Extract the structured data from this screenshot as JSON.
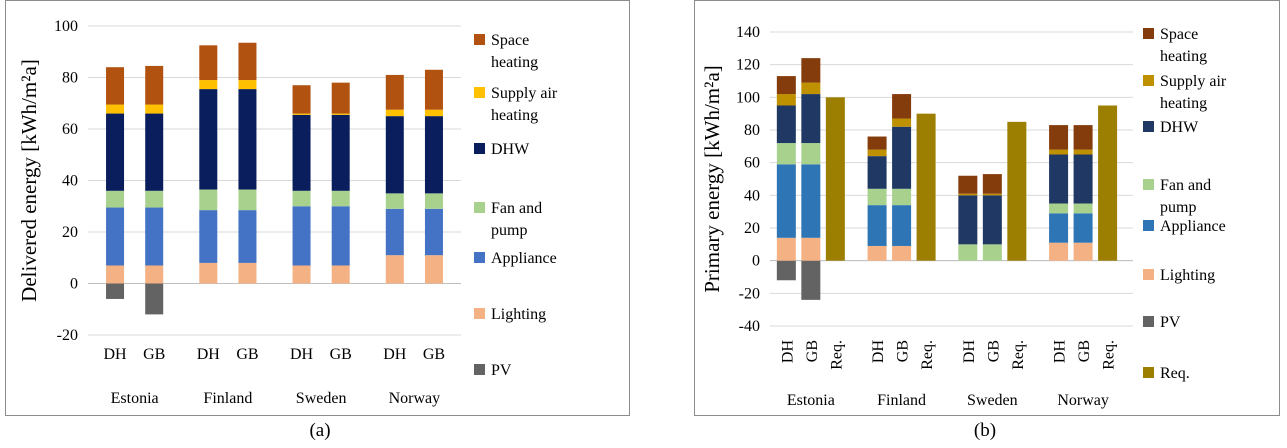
{
  "captions": {
    "a": "(a)",
    "b": "(b)"
  },
  "colors": {
    "PV": "#636363",
    "Lighting": "#f4b183",
    "Appliance": "#4472c4",
    "Fan and pump": "#a9d18e",
    "DHW": "#0a1e5e",
    "Supply air heating": "#ffc000",
    "Space heating": "#b15211",
    "Req.": "#9c7f00"
  },
  "colors_b": {
    "PV": "#636363",
    "Lighting": "#f4b183",
    "Appliance": "#2e75b6",
    "Fan and pump": "#a9d18e",
    "DHW": "#203864",
    "Supply air heating": "#bf9000",
    "Space heating": "#843c0c",
    "Req.": "#9c7f00"
  },
  "chart_data": [
    {
      "id": "a",
      "type": "bar",
      "stacked": true,
      "ylabel": "Delivered energy  [kWh/m²a]",
      "ylim": [
        -20,
        100
      ],
      "yticks": [
        -20,
        0,
        20,
        40,
        60,
        80,
        100
      ],
      "groups": [
        "Estonia",
        "Finland",
        "Sweden",
        "Norway"
      ],
      "categories": [
        "DH",
        "GB",
        "DH",
        "GB",
        "DH",
        "GB",
        "DH",
        "GB"
      ],
      "category_group": [
        0,
        0,
        1,
        1,
        2,
        2,
        3,
        3
      ],
      "series": [
        {
          "name": "PV",
          "values": [
            -6,
            -12,
            0,
            0,
            0,
            0,
            0,
            0
          ]
        },
        {
          "name": "Lighting",
          "values": [
            7,
            7,
            8,
            8,
            7,
            7,
            11,
            11
          ]
        },
        {
          "name": "Appliance",
          "values": [
            22.5,
            22.5,
            20.5,
            20.5,
            23,
            23,
            18,
            18
          ]
        },
        {
          "name": "Fan and pump",
          "values": [
            6.5,
            6.5,
            8,
            8,
            6,
            6,
            6,
            6
          ]
        },
        {
          "name": "DHW",
          "values": [
            30,
            30,
            39,
            39,
            29.5,
            29.5,
            30,
            30
          ]
        },
        {
          "name": "Supply air heating",
          "values": [
            3.5,
            3.5,
            3.5,
            3.5,
            0.5,
            0.5,
            2.5,
            2.5
          ]
        },
        {
          "name": "Space heating",
          "values": [
            14.5,
            15,
            13.5,
            14.5,
            11,
            12,
            13.5,
            15.5
          ]
        }
      ],
      "legend": [
        "Space heating",
        "Supply air heating",
        "DHW",
        "Fan and pump",
        "Appliance",
        "Lighting",
        "PV"
      ],
      "legend_labels": [
        [
          "Space",
          "heating"
        ],
        [
          "Supply air",
          "heating"
        ],
        [
          "DHW"
        ],
        [
          "Fan and",
          "pump"
        ],
        [
          "Appliance"
        ],
        [
          "Lighting"
        ],
        [
          "PV"
        ]
      ]
    },
    {
      "id": "b",
      "type": "bar",
      "stacked": true,
      "ylabel": "Primary energy [kWh/m²a]",
      "ylim": [
        -40,
        140
      ],
      "yticks": [
        -40,
        -20,
        0,
        20,
        40,
        60,
        80,
        100,
        120,
        140
      ],
      "groups": [
        "Estonia",
        "Finland",
        "Sweden",
        "Norway"
      ],
      "categories": [
        "DH",
        "GB",
        "Req.",
        "DH",
        "GB",
        "Req.",
        "DH",
        "GB",
        "Req.",
        "DH",
        "GB",
        "Req."
      ],
      "category_group": [
        0,
        0,
        0,
        1,
        1,
        1,
        2,
        2,
        2,
        3,
        3,
        3
      ],
      "series": [
        {
          "name": "PV",
          "values": [
            -12,
            -24,
            0,
            0,
            0,
            0,
            0,
            0,
            0,
            0,
            0,
            0
          ]
        },
        {
          "name": "Lighting",
          "values": [
            14,
            14,
            0,
            9,
            9,
            0,
            0,
            0,
            0,
            11,
            11,
            0
          ]
        },
        {
          "name": "Appliance",
          "values": [
            45,
            45,
            0,
            25,
            25,
            0,
            0,
            0,
            0,
            18,
            18,
            0
          ]
        },
        {
          "name": "Fan and pump",
          "values": [
            13,
            13,
            0,
            10,
            10,
            0,
            10,
            10,
            0,
            6,
            6,
            0
          ]
        },
        {
          "name": "DHW",
          "values": [
            23,
            30,
            0,
            20,
            38,
            0,
            30,
            30,
            0,
            30,
            30,
            0
          ]
        },
        {
          "name": "Supply air heating",
          "values": [
            7,
            7,
            0,
            4,
            5,
            0,
            1,
            1,
            0,
            3,
            3,
            0
          ]
        },
        {
          "name": "Space heating",
          "values": [
            11,
            15,
            0,
            8,
            15,
            0,
            11,
            12,
            0,
            15,
            15,
            0
          ]
        },
        {
          "name": "Req.",
          "values": [
            0,
            0,
            100,
            0,
            0,
            90,
            0,
            0,
            85,
            0,
            0,
            95
          ]
        }
      ],
      "legend": [
        "Space heating",
        "Supply air heating",
        "DHW",
        "Fan and pump",
        "Appliance",
        "Lighting",
        "PV",
        "Req."
      ],
      "legend_labels": [
        [
          "Space",
          "heating"
        ],
        [
          "Supply air",
          "heating"
        ],
        [
          "DHW"
        ],
        [
          "Fan and",
          "pump"
        ],
        [
          "Appliance"
        ],
        [
          "Lighting"
        ],
        [
          "PV"
        ],
        [
          "Req."
        ]
      ]
    }
  ]
}
